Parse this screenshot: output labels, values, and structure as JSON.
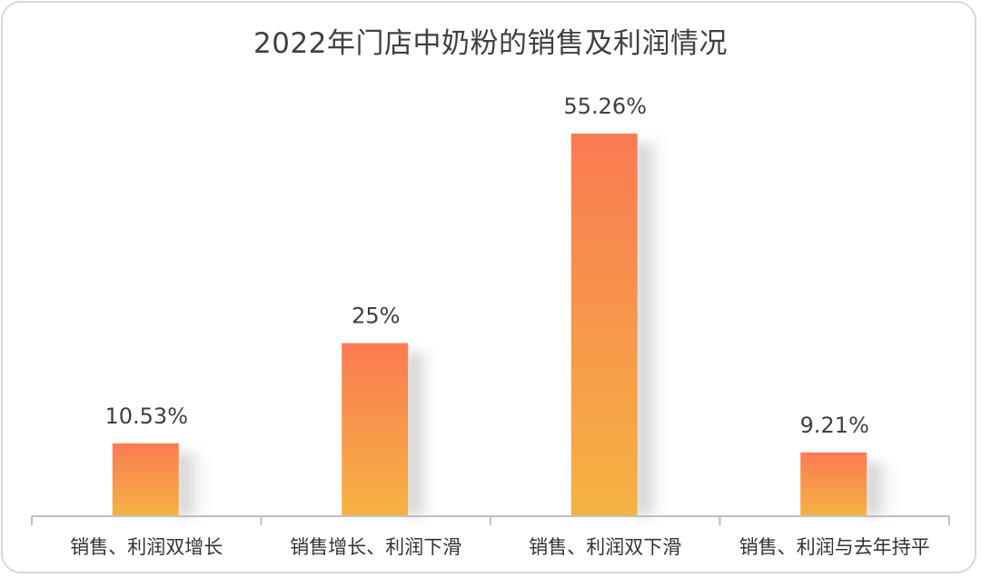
{
  "chart_data": {
    "type": "bar",
    "title": "2022年门店中奶粉的销售及利润情况",
    "categories": [
      "销售、利润双增长",
      "销售增长、利润下滑",
      "销售、利润双下滑",
      "销售、利润与去年持平"
    ],
    "values": [
      10.53,
      25,
      55.26,
      9.21
    ],
    "value_labels": [
      "10.53%",
      "25%",
      "55.26%",
      "9.21%"
    ],
    "xlabel": "",
    "ylabel": "",
    "ylim": [
      0,
      55.26
    ],
    "grid": false,
    "legend": "none",
    "colors": {
      "bar_top": "#FA7B53",
      "bar_bottom": "#F5B342",
      "axis": "#bfbfbf",
      "text": "#404040"
    }
  }
}
